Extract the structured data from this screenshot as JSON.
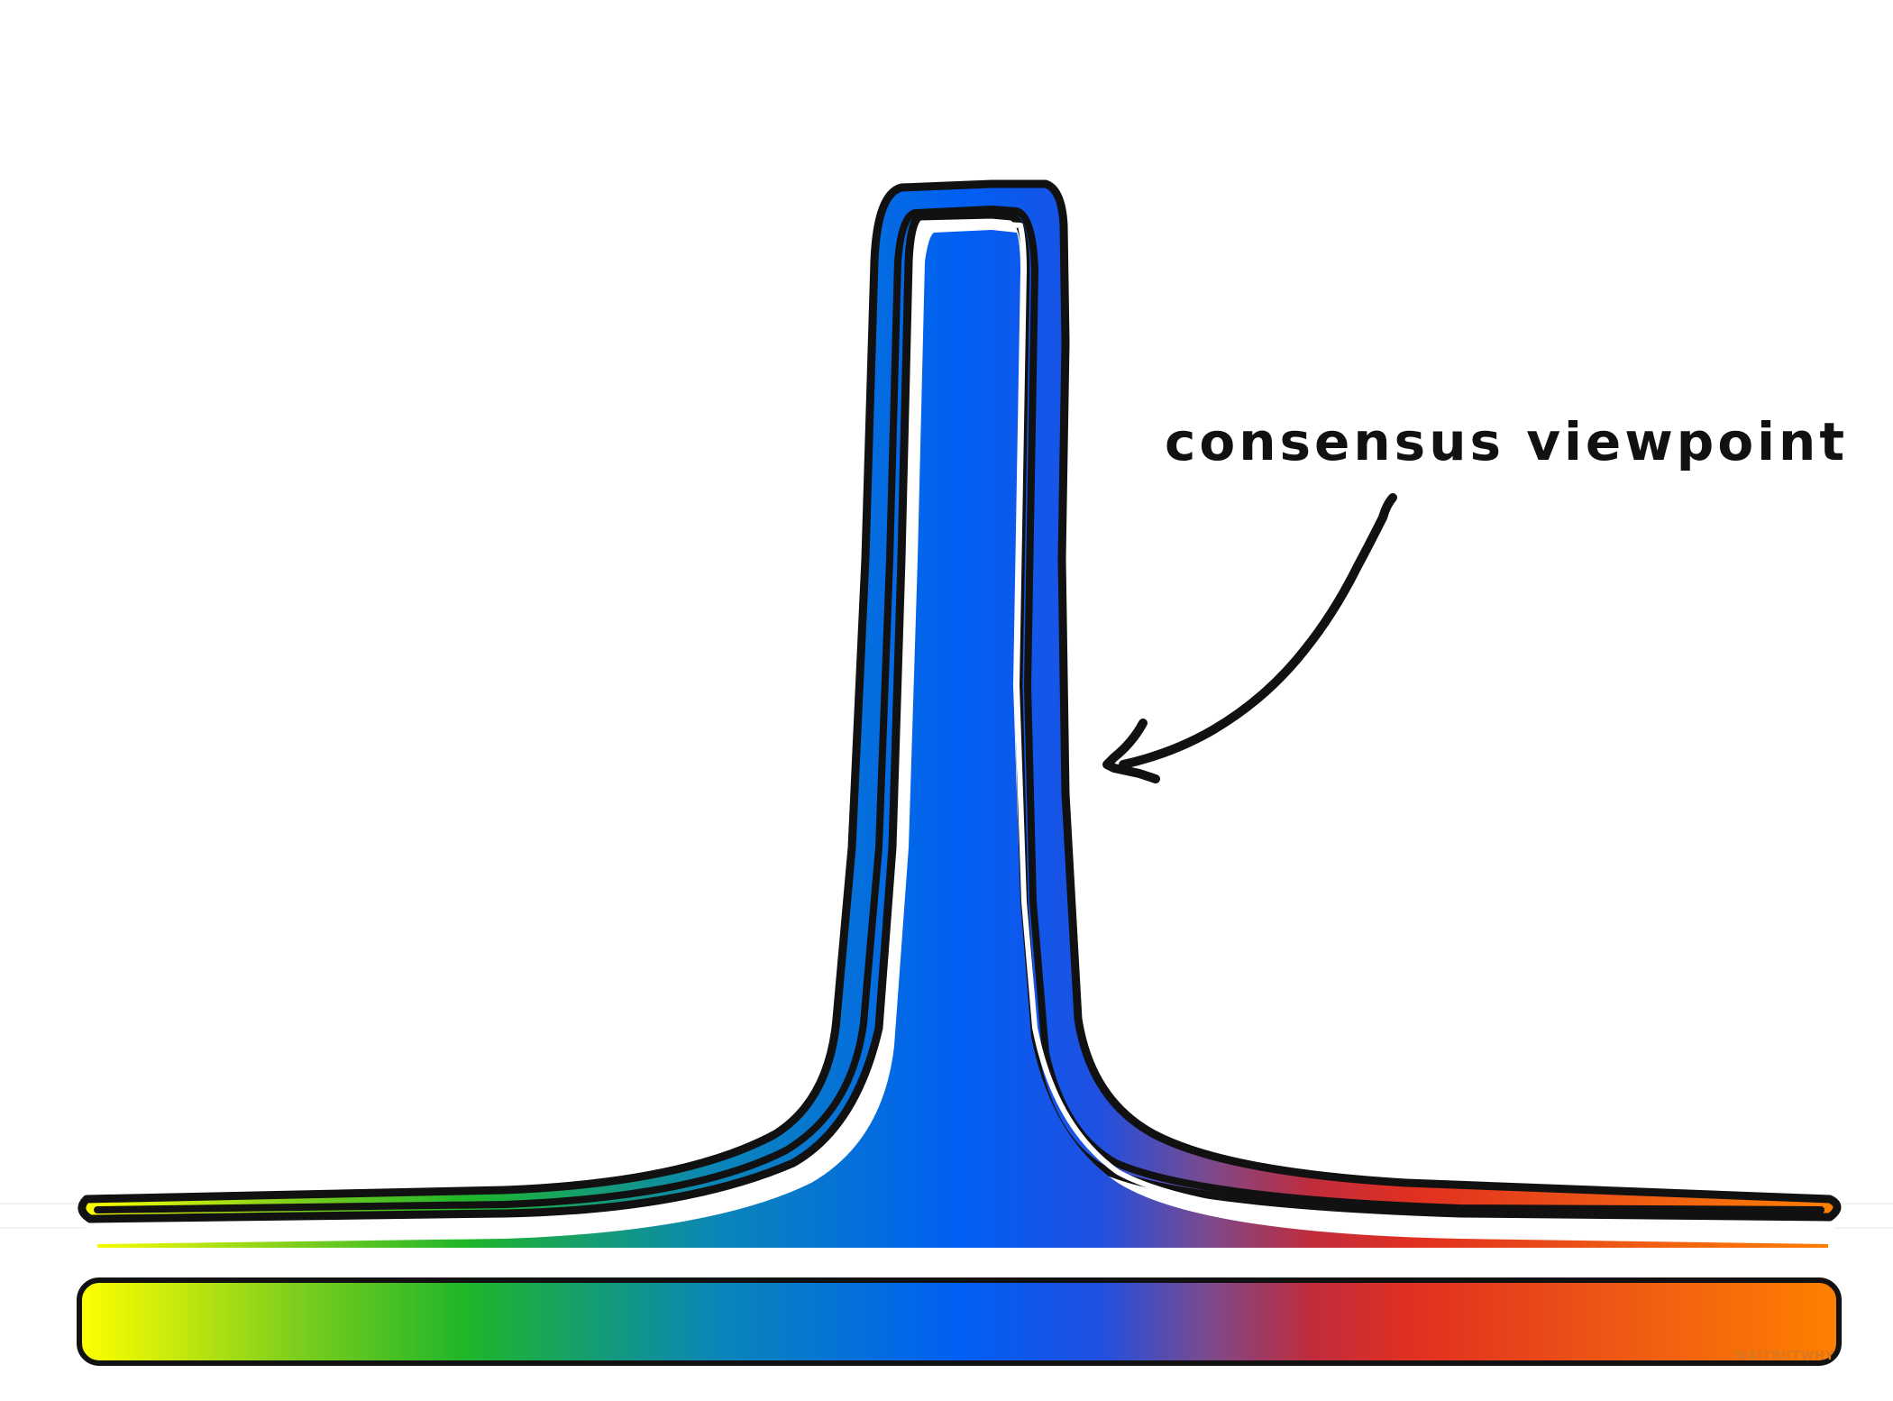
{
  "annotation": {
    "label": "consensus viewpoint"
  },
  "watermark": {
    "text": "WAITBUTWHY"
  },
  "colors": {
    "spectrum_stops": [
      "#ffff00",
      "#7fcf1c",
      "#1fb52a",
      "#0b86b7",
      "#005ff5",
      "#2050e0",
      "#7a4a8e",
      "#c02c3c",
      "#e23020",
      "#ee5a14",
      "#ff8000"
    ],
    "outline": "#111111",
    "outer_band": "#1a4fd8",
    "inner_fill": "#0a62f0"
  }
}
